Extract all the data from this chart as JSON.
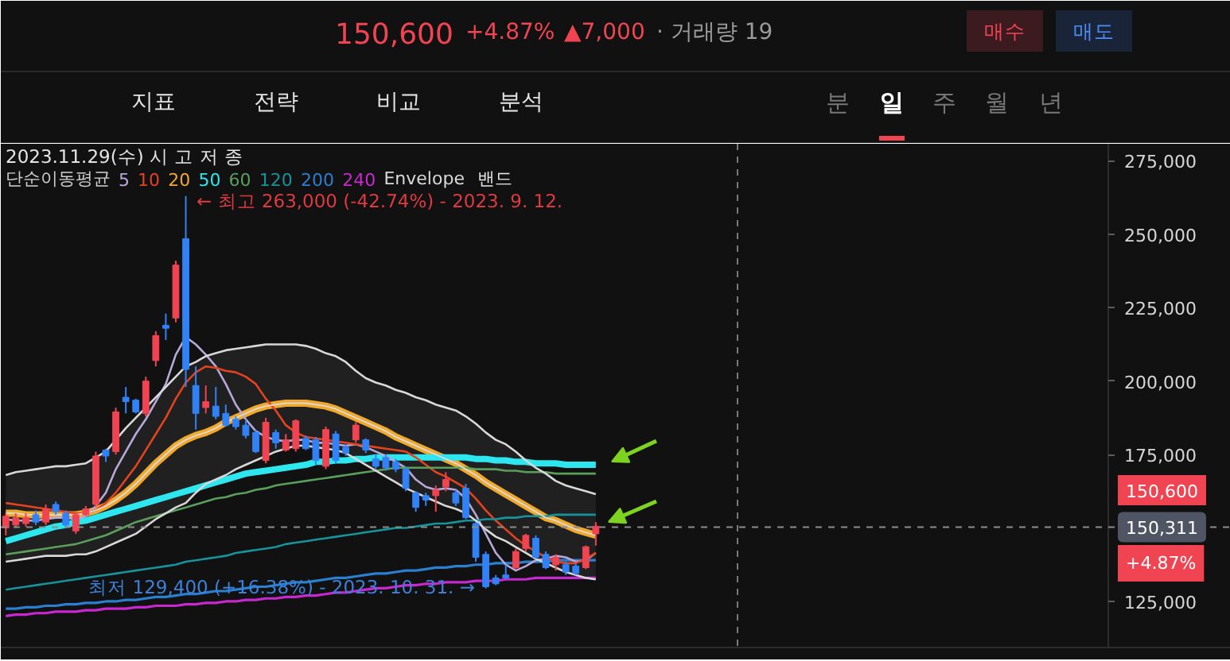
{
  "chart_data": {
    "type": "candlestick",
    "annotations": [
      "150,600",
      "+4.87%",
      "▲7,000",
      "· 거래량 19",
      "매수",
      "매도",
      "지표",
      "전략",
      "비교",
      "분석",
      "분",
      "일",
      "주",
      "월",
      "년",
      "2023.11.29(수) 시 고 저 종",
      "← 최고 263,000 (-42.74%) - 2023. 9. 12.",
      "최저 129,400 (+16.38%) - 2023. 10. 31. →",
      "150,600",
      "+4.87%",
      "밴드"
    ],
    "legend": "top left",
    "legend_title": "단순이동평균",
    "tick_labels": "y",
    "categories": [
      null,
      null,
      null,
      null,
      null,
      null,
      null,
      null,
      null,
      null,
      null,
      null,
      null,
      null,
      null,
      null,
      null,
      null,
      null,
      null,
      null,
      null,
      null,
      null,
      null,
      null,
      null,
      null,
      null,
      null,
      null,
      null,
      null,
      null,
      null,
      null,
      null,
      null,
      null,
      null,
      null,
      null,
      null,
      null,
      null,
      null,
      null,
      null,
      null,
      null,
      null,
      null,
      null,
      null,
      null,
      null,
      null,
      null,
      null,
      null,
      null,
      null,
      null,
      null,
      null,
      null,
      null,
      null,
      null,
      null,
      null,
      null,
      null,
      null,
      null,
      null,
      null,
      null,
      null,
      null,
      null,
      null,
      null,
      null,
      null,
      null,
      null,
      null,
      null,
      null,
      null,
      null,
      null,
      null,
      null,
      null,
      null,
      null,
      null,
      null,
      null,
      null,
      null,
      null,
      null,
      null,
      null,
      null,
      null,
      null,
      null,
      null,
      null,
      null,
      null,
      null,
      null,
      null,
      null,
      null,
      null,
      null,
      null
    ],
    "ohlc": [
      [
        150000,
        155000,
        147500,
        154000
      ],
      [
        151000,
        155000,
        150000,
        153500
      ],
      [
        151500,
        155000,
        150500,
        153500
      ],
      [
        154500,
        156000,
        151000,
        152000
      ],
      [
        152000,
        158000,
        151000,
        156500
      ],
      [
        158000,
        159000,
        154500,
        155500
      ],
      [
        155000,
        156000,
        150000,
        151000
      ],
      [
        149000,
        155000,
        148000,
        154500
      ],
      [
        154500,
        157500,
        154000,
        156500
      ],
      [
        158000,
        176000,
        157000,
        174500
      ],
      [
        176500,
        177000,
        172500,
        174500
      ],
      [
        176000,
        191000,
        175000,
        189500
      ],
      [
        194500,
        198000,
        189000,
        193000
      ],
      [
        193500,
        194000,
        189000,
        189500
      ],
      [
        189000,
        201500,
        188000,
        200000
      ],
      [
        207000,
        217000,
        205000,
        215500
      ],
      [
        219000,
        223000,
        214000,
        218000
      ],
      [
        221500,
        241000,
        220000,
        239500
      ],
      [
        248500,
        263000,
        198000,
        204000
      ],
      [
        198500,
        205000,
        183500,
        189000
      ],
      [
        191000,
        198500,
        189000,
        193000
      ],
      [
        191500,
        198000,
        187000,
        188000
      ],
      [
        189000,
        192000,
        184500,
        185000
      ],
      [
        187000,
        188000,
        183500,
        184500
      ],
      [
        185000,
        187000,
        180500,
        181500
      ],
      [
        182500,
        183500,
        175500,
        176000
      ],
      [
        173000,
        187500,
        172000,
        186000
      ],
      [
        182500,
        183500,
        177000,
        179000
      ],
      [
        176500,
        182000,
        176000,
        180000
      ],
      [
        177000,
        187000,
        176000,
        186500
      ],
      [
        180500,
        181500,
        176500,
        177000
      ],
      [
        180000,
        181000,
        171500,
        173000
      ],
      [
        171000,
        184500,
        170000,
        183500
      ],
      [
        182000,
        183000,
        172000,
        173000
      ],
      [
        177500,
        178500,
        174500,
        175500
      ],
      [
        180000,
        186000,
        179000,
        185000
      ],
      [
        180000,
        180500,
        175500,
        176500
      ],
      [
        173500,
        175000,
        170000,
        171000
      ],
      [
        174000,
        175000,
        169500,
        170500
      ],
      [
        172500,
        173500,
        169000,
        170000
      ],
      [
        170000,
        171000,
        162500,
        163500
      ],
      [
        162000,
        162500,
        155500,
        157000
      ],
      [
        161000,
        162000,
        157500,
        159500
      ],
      [
        161000,
        164500,
        155500,
        163000
      ],
      [
        164000,
        169000,
        162500,
        166500
      ],
      [
        162000,
        163000,
        157500,
        158500
      ],
      [
        163500,
        165000,
        153000,
        153500
      ],
      [
        151500,
        152000,
        138500,
        140000
      ],
      [
        141000,
        142000,
        129400,
        130000
      ],
      [
        133000,
        134000,
        130500,
        131000
      ],
      [
        134000,
        137500,
        132500,
        133000
      ],
      [
        136500,
        143000,
        136000,
        142000
      ],
      [
        143000,
        148000,
        142000,
        147500
      ],
      [
        146500,
        147500,
        139500,
        140000
      ],
      [
        141000,
        142000,
        136000,
        136500
      ],
      [
        137500,
        141000,
        135500,
        140000
      ],
      [
        137500,
        138500,
        134000,
        135000
      ],
      [
        137000,
        138000,
        134000,
        134500
      ],
      [
        136500,
        144000,
        136000,
        143600
      ],
      [
        148000,
        152000,
        144000,
        150600
      ],
      null,
      null,
      null,
      null,
      null,
      null,
      null,
      null,
      null,
      null,
      null,
      null,
      null,
      null,
      null,
      null,
      null,
      null,
      null,
      null,
      null,
      null,
      null,
      null,
      null,
      null,
      null,
      null,
      null,
      null,
      null,
      null,
      null,
      null,
      null,
      null,
      null,
      null,
      null,
      null,
      null,
      null,
      null,
      null,
      null,
      null,
      null,
      null,
      null,
      null,
      null,
      null,
      null,
      null,
      null,
      null,
      null,
      null,
      null,
      null,
      null,
      null,
      null
    ],
    "colors": [
      "#f04452",
      "#f04452",
      "#f04452",
      "#3182f6",
      "#f04452",
      "#3182f6",
      "#3182f6",
      "#f04452",
      "#f04452",
      "#f04452",
      "#3182f6",
      "#f04452",
      "#3182f6",
      "#3182f6",
      "#f04452",
      "#f04452",
      "#3182f6",
      "#f04452",
      "#3182f6",
      "#3182f6",
      "#f04452",
      "#3182f6",
      "#3182f6",
      "#3182f6",
      "#3182f6",
      "#3182f6",
      "#f04452",
      "#3182f6",
      "#f04452",
      "#f04452",
      "#3182f6",
      "#3182f6",
      "#f04452",
      "#3182f6",
      "#3182f6",
      "#f04452",
      "#3182f6",
      "#3182f6",
      "#3182f6",
      "#3182f6",
      "#3182f6",
      "#3182f6",
      "#3182f6",
      "#f04452",
      "#f04452",
      "#3182f6",
      "#3182f6",
      "#3182f6",
      "#3182f6",
      "#3182f6",
      "#3182f6",
      "#f04452",
      "#f04452",
      "#3182f6",
      "#3182f6",
      "#f04452",
      "#3182f6",
      "#3182f6",
      "#f04452",
      "#f04452",
      null,
      null,
      null,
      null,
      null,
      null,
      null,
      null,
      null,
      null,
      null,
      null,
      null,
      null,
      null,
      null,
      null,
      null,
      null,
      null,
      null,
      null,
      null,
      null,
      null,
      null,
      null,
      null,
      null,
      null,
      null,
      null,
      null,
      null,
      null,
      null,
      null,
      null,
      null,
      null,
      null,
      null,
      null,
      null,
      null,
      null,
      null,
      null,
      null,
      null,
      null,
      null,
      null,
      null,
      null,
      null,
      null,
      null,
      null,
      null,
      null,
      null,
      null
    ],
    "series": [
      {
        "name": "5",
        "type": "line",
        "color": "#b8a8da",
        "values": [
          153000,
          152500,
          152500,
          152500,
          153000,
          153500,
          153500,
          153000,
          154000,
          157500,
          162000,
          170000,
          176000,
          182000,
          187000,
          193000,
          199000,
          209000,
          215000,
          212500,
          209000,
          205000,
          199000,
          192000,
          187000,
          183000,
          181000,
          180000,
          179500,
          180000,
          180000,
          179000,
          179000,
          178500,
          178000,
          178500,
          177500,
          176000,
          174500,
          172500,
          170500,
          166500,
          164000,
          163000,
          163500,
          163000,
          160000,
          154500,
          148000,
          141500,
          137500,
          135500,
          137000,
          139000,
          139500,
          140500,
          140000,
          138500,
          139000,
          141500,
          null,
          null,
          null,
          null,
          null,
          null,
          null,
          null,
          null,
          null,
          null,
          null,
          null,
          null,
          null,
          null,
          null,
          null,
          null,
          null,
          null,
          null,
          null,
          null,
          null,
          null,
          null,
          null,
          null,
          null,
          null,
          null,
          null,
          null,
          null,
          null,
          null,
          null,
          null,
          null,
          null,
          null,
          null,
          null,
          null,
          null,
          null,
          null,
          null,
          null,
          null,
          null,
          null,
          null,
          null,
          null,
          null,
          null,
          null,
          null,
          null,
          null,
          null
        ]
      },
      {
        "name": "10",
        "type": "line",
        "color": "#e4431f",
        "values": [
          158500,
          158000,
          157500,
          157000,
          156500,
          156000,
          155500,
          155000,
          155000,
          156000,
          158500,
          162000,
          166500,
          171000,
          176500,
          182000,
          187500,
          194000,
          199500,
          203000,
          205000,
          204500,
          203500,
          203000,
          201500,
          199000,
          194000,
          190000,
          185000,
          182500,
          181000,
          180500,
          180000,
          179500,
          179000,
          178500,
          178000,
          177500,
          177000,
          176500,
          176000,
          174000,
          171500,
          169000,
          167500,
          165500,
          163500,
          160000,
          156000,
          152500,
          149500,
          146500,
          144000,
          142000,
          140000,
          138500,
          138000,
          138000,
          139500,
          141500,
          null,
          null,
          null,
          null,
          null,
          null,
          null,
          null,
          null,
          null,
          null,
          null,
          null,
          null,
          null,
          null,
          null,
          null,
          null,
          null,
          null,
          null,
          null,
          null,
          null,
          null,
          null,
          null,
          null,
          null,
          null,
          null,
          null,
          null,
          null,
          null,
          null,
          null,
          null,
          null,
          null,
          null,
          null,
          null,
          null,
          null,
          null,
          null,
          null,
          null,
          null,
          null,
          null,
          null,
          null,
          null,
          null,
          null,
          null,
          null,
          null,
          null,
          null
        ]
      },
      {
        "name": "20",
        "type": "line",
        "color": "#f2a92a",
        "values": [
          155000,
          155000,
          154500,
          154500,
          154500,
          154500,
          154500,
          154500,
          155000,
          156000,
          157500,
          159500,
          162000,
          165000,
          168500,
          172000,
          175000,
          178000,
          180000,
          181500,
          182500,
          184000,
          186000,
          187500,
          189000,
          190500,
          191500,
          192000,
          192500,
          192500,
          192500,
          192000,
          191500,
          190500,
          189000,
          187500,
          186000,
          184500,
          183000,
          181000,
          179500,
          178000,
          176500,
          175000,
          173500,
          172000,
          170000,
          168000,
          165500,
          163500,
          161500,
          159500,
          157500,
          155500,
          153500,
          152500,
          151000,
          149500,
          148500,
          147500,
          null,
          null,
          null,
          null,
          null,
          null,
          null,
          null,
          null,
          null,
          null,
          null,
          null,
          null,
          null,
          null,
          null,
          null,
          null,
          null,
          null,
          null,
          null,
          null,
          null,
          null,
          null,
          null,
          null,
          null,
          null,
          null,
          null,
          null,
          null,
          null,
          null,
          null,
          null,
          null,
          null,
          null,
          null,
          null,
          null,
          null,
          null,
          null,
          null,
          null,
          null,
          null,
          null,
          null,
          null,
          null,
          null,
          null,
          null,
          null,
          null,
          null,
          null
        ]
      },
      {
        "name": "50",
        "type": "line",
        "color": "#2ee6ee",
        "values": [
          145500,
          146500,
          147500,
          148500,
          149500,
          150500,
          151000,
          152000,
          152500,
          153500,
          154500,
          155500,
          156500,
          157500,
          158500,
          159500,
          160500,
          161500,
          162500,
          163500,
          164500,
          165500,
          166500,
          167500,
          168500,
          169000,
          169500,
          170000,
          170500,
          171000,
          171500,
          172500,
          172500,
          173000,
          173000,
          173500,
          173500,
          174000,
          174000,
          174000,
          174000,
          174000,
          174000,
          174000,
          174000,
          174000,
          174000,
          173500,
          173500,
          173000,
          173000,
          172500,
          172500,
          172000,
          172000,
          172000,
          171500,
          171500,
          171500,
          171500,
          null,
          null,
          null,
          null,
          null,
          null,
          null,
          null,
          null,
          null,
          null,
          null,
          null,
          null,
          null,
          null,
          null,
          null,
          null,
          null,
          null,
          null,
          null,
          null,
          null,
          null,
          null,
          null,
          null,
          null,
          null,
          null,
          null,
          null,
          null,
          null,
          null,
          null,
          null,
          null,
          null,
          null,
          null,
          null,
          null,
          null,
          null,
          null,
          null,
          null,
          null,
          null,
          null,
          null,
          null,
          null,
          null,
          null,
          null,
          null,
          null,
          null,
          null
        ]
      },
      {
        "name": "60",
        "type": "line",
        "color": "#5a9f5c",
        "values": [
          141000,
          141500,
          142000,
          142500,
          143000,
          143500,
          144000,
          144500,
          145500,
          146500,
          147500,
          149000,
          150500,
          152000,
          153000,
          154000,
          155000,
          156000,
          157000,
          158000,
          159000,
          160000,
          160500,
          161500,
          162000,
          163000,
          163500,
          164500,
          165000,
          165500,
          166000,
          166500,
          167000,
          167500,
          168000,
          168500,
          169000,
          169500,
          170000,
          170500,
          170500,
          170500,
          170500,
          170500,
          170500,
          170500,
          170500,
          170000,
          170000,
          170000,
          169500,
          169500,
          169000,
          169000,
          169000,
          168500,
          168500,
          168500,
          168500,
          168500,
          null,
          null,
          null,
          null,
          null,
          null,
          null,
          null,
          null,
          null,
          null,
          null,
          null,
          null,
          null,
          null,
          null,
          null,
          null,
          null,
          null,
          null,
          null,
          null,
          null,
          null,
          null,
          null,
          null,
          null,
          null,
          null,
          null,
          null,
          null,
          null,
          null,
          null,
          null,
          null,
          null,
          null,
          null,
          null,
          null,
          null,
          null,
          null,
          null,
          null,
          null,
          null,
          null,
          null,
          null,
          null,
          null,
          null,
          null,
          null,
          null,
          null,
          null
        ]
      },
      {
        "name": "120",
        "type": "line",
        "color": "#17939b",
        "values": [
          129000,
          129500,
          130000,
          130500,
          131000,
          131500,
          132000,
          132500,
          133000,
          133500,
          134000,
          134500,
          135000,
          135500,
          136000,
          136500,
          137000,
          137500,
          138500,
          139000,
          139500,
          140000,
          140500,
          141500,
          142000,
          142500,
          143000,
          143500,
          144500,
          145000,
          145500,
          146000,
          146500,
          147000,
          147500,
          148000,
          148500,
          149000,
          149500,
          150000,
          150000,
          150500,
          151000,
          151500,
          151500,
          152000,
          152500,
          152500,
          153000,
          153000,
          153500,
          153500,
          154000,
          154000,
          154000,
          154500,
          154500,
          154500,
          154500,
          154500,
          null,
          null,
          null,
          null,
          null,
          null,
          null,
          null,
          null,
          null,
          null,
          null,
          null,
          null,
          null,
          null,
          null,
          null,
          null,
          null,
          null,
          null,
          null,
          null,
          null,
          null,
          null,
          null,
          null,
          null,
          null,
          null,
          null,
          null,
          null,
          null,
          null,
          null,
          null,
          null,
          null,
          null,
          null,
          null,
          null,
          null,
          null,
          null,
          null,
          null,
          null,
          null,
          null,
          null,
          null,
          null,
          null,
          null,
          null,
          null,
          null,
          null,
          null
        ]
      },
      {
        "name": "200",
        "type": "line",
        "color": "#2b7fd1",
        "values": [
          122500,
          122500,
          123000,
          123000,
          123500,
          123500,
          124000,
          124000,
          124500,
          124500,
          125000,
          125000,
          125500,
          125500,
          126000,
          126500,
          126500,
          127000,
          127500,
          127500,
          128000,
          128500,
          128500,
          129000,
          129500,
          130000,
          130000,
          130500,
          131000,
          131500,
          131500,
          132000,
          132500,
          133000,
          133000,
          133500,
          134000,
          134500,
          134500,
          135000,
          135500,
          135500,
          136000,
          136500,
          136500,
          137000,
          137000,
          137500,
          137500,
          138000,
          138000,
          138000,
          138500,
          138500,
          138500,
          139000,
          139000,
          139000,
          139000,
          139000,
          null,
          null,
          null,
          null,
          null,
          null,
          null,
          null,
          null,
          null,
          null,
          null,
          null,
          null,
          null,
          null,
          null,
          null,
          null,
          null,
          null,
          null,
          null,
          null,
          null,
          null,
          null,
          null,
          null,
          null,
          null,
          null,
          null,
          null,
          null,
          null,
          null,
          null,
          null,
          null,
          null,
          null,
          null,
          null,
          null,
          null,
          null,
          null,
          null,
          null,
          null,
          null,
          null,
          null,
          null,
          null,
          null,
          null,
          null,
          null,
          null,
          null,
          null
        ]
      },
      {
        "name": "240",
        "type": "line",
        "color": "#c828cf",
        "values": [
          120000,
          120500,
          120500,
          121000,
          121000,
          121500,
          121500,
          121500,
          122000,
          122000,
          122500,
          122500,
          122500,
          123000,
          123000,
          123500,
          123500,
          123500,
          124000,
          124000,
          124500,
          124500,
          125000,
          125000,
          125500,
          125500,
          126000,
          126000,
          126500,
          126500,
          127000,
          127000,
          127500,
          128000,
          128000,
          128500,
          129000,
          129500,
          129500,
          130000,
          130500,
          130500,
          131000,
          131000,
          131500,
          131500,
          131500,
          132000,
          132000,
          132000,
          132500,
          132500,
          132500,
          133000,
          133000,
          133000,
          133000,
          133000,
          133000,
          133000,
          null,
          null,
          null,
          null,
          null,
          null,
          null,
          null,
          null,
          null,
          null,
          null,
          null,
          null,
          null,
          null,
          null,
          null,
          null,
          null,
          null,
          null,
          null,
          null,
          null,
          null,
          null,
          null,
          null,
          null,
          null,
          null,
          null,
          null,
          null,
          null,
          null,
          null,
          null,
          null,
          null,
          null,
          null,
          null,
          null,
          null,
          null,
          null,
          null,
          null,
          null,
          null,
          null,
          null,
          null,
          null,
          null,
          null,
          null,
          null,
          null,
          null,
          null
        ]
      },
      {
        "name": "Envelope",
        "type": "line",
        "color": "#d8d8d8",
        "values": [
          155000,
          155000,
          154500,
          154500,
          154500,
          154500,
          154500,
          154500,
          155000,
          156000,
          157500,
          159500,
          162000,
          165000,
          168500,
          172000,
          175000,
          178000,
          180000,
          181500,
          182500,
          184000,
          186000,
          187500,
          189000,
          190500,
          191500,
          192000,
          192500,
          192500,
          192500,
          192000,
          191500,
          190500,
          189000,
          187500,
          186000,
          184500,
          183000,
          181000,
          179500,
          178000,
          176500,
          175000,
          173500,
          172000,
          170000,
          168000,
          165500,
          163500,
          161500,
          159500,
          157500,
          155500,
          153500,
          152500,
          151000,
          149500,
          148500,
          147500,
          null,
          null,
          null,
          null,
          null,
          null,
          null,
          null,
          null,
          null,
          null,
          null,
          null,
          null,
          null,
          null,
          null,
          null,
          null,
          null,
          null,
          null,
          null,
          null,
          null,
          null,
          null,
          null,
          null,
          null,
          null,
          null,
          null,
          null,
          null,
          null,
          null,
          null,
          null,
          null,
          null,
          null,
          null,
          null,
          null,
          null,
          null,
          null,
          null,
          null,
          null,
          null,
          null,
          null,
          null,
          null,
          null,
          null,
          null,
          null,
          null,
          null,
          null
        ],
        "upper": [
          168000,
          169000,
          169500,
          170000,
          170500,
          171000,
          171000,
          171500,
          172000,
          174000,
          176000,
          180000,
          184000,
          187500,
          191000,
          194500,
          198000,
          201500,
          205000,
          206500,
          208500,
          209500,
          210500,
          211000,
          211500,
          212000,
          212500,
          212500,
          212500,
          212500,
          212000,
          211000,
          209500,
          208500,
          206500,
          203500,
          201000,
          199500,
          198500,
          197000,
          196000,
          194500,
          193500,
          192000,
          191000,
          190000,
          188000,
          185500,
          182500,
          180000,
          178500,
          176000,
          173000,
          170500,
          168500,
          166000,
          164500,
          163500,
          162500,
          161500,
          null,
          null,
          null,
          null,
          null,
          null,
          null,
          null,
          null,
          null,
          null,
          null,
          null,
          null,
          null,
          null,
          null,
          null,
          null,
          null,
          null,
          null,
          null,
          null,
          null,
          null,
          null,
          null,
          null,
          null,
          null,
          null,
          null,
          null,
          null,
          null,
          null,
          null,
          null,
          null,
          null,
          null,
          null,
          null,
          null,
          null,
          null,
          null,
          null,
          null,
          null,
          null,
          null,
          null,
          null,
          null,
          null,
          null,
          null,
          null,
          null,
          null,
          null
        ],
        "lower": [
          138500,
          139000,
          139500,
          140000,
          140500,
          140500,
          140500,
          141000,
          141000,
          142000,
          143500,
          145000,
          146500,
          148000,
          150500,
          153000,
          155000,
          157000,
          158500,
          162000,
          165000,
          166500,
          168000,
          170000,
          171500,
          173000,
          174500,
          176000,
          177000,
          178000,
          178000,
          177500,
          177000,
          176500,
          175500,
          173500,
          171500,
          169500,
          167500,
          165500,
          163500,
          162000,
          160500,
          159000,
          157500,
          156500,
          155000,
          152500,
          149500,
          147000,
          145500,
          143500,
          141500,
          139500,
          138000,
          136500,
          135000,
          134000,
          133000,
          132500,
          null,
          null,
          null,
          null,
          null,
          null,
          null,
          null,
          null,
          null,
          null,
          null,
          null,
          null,
          null,
          null,
          null,
          null,
          null,
          null,
          null,
          null,
          null,
          null,
          null,
          null,
          null,
          null,
          null,
          null,
          null,
          null,
          null,
          null,
          null,
          null,
          null,
          null,
          null,
          null,
          null,
          null,
          null,
          null,
          null,
          null,
          null,
          null,
          null,
          null,
          null,
          null,
          null,
          null,
          null,
          null,
          null,
          null,
          null,
          null,
          null,
          null,
          null
        ]
      },
      {
        "type": "line",
        "color": "#d8d8d8",
        "values": [
          168000,
          169000,
          169500,
          170000,
          170500,
          171000,
          171000,
          171500,
          172000,
          174000,
          176000,
          180000,
          184000,
          187500,
          191000,
          194500,
          198000,
          201500,
          205000,
          206500,
          208500,
          209500,
          210500,
          211000,
          211500,
          212000,
          212500,
          212500,
          212500,
          212500,
          212000,
          211000,
          209500,
          208500,
          206500,
          203500,
          201000,
          199500,
          198500,
          197000,
          196000,
          194500,
          193500,
          192000,
          191000,
          190000,
          188000,
          185500,
          182500,
          180000,
          178500,
          176000,
          173000,
          170500,
          168500,
          166000,
          164500,
          163500,
          162500,
          161500,
          null,
          null,
          null,
          null,
          null,
          null,
          null,
          null,
          null,
          null,
          null,
          null,
          null,
          null,
          null,
          null,
          null,
          null,
          null,
          null,
          null,
          null,
          null,
          null,
          null,
          null,
          null,
          null,
          null,
          null,
          null,
          null,
          null,
          null,
          null,
          null,
          null,
          null,
          null,
          null,
          null,
          null,
          null,
          null,
          null,
          null,
          null,
          null,
          null,
          null,
          null,
          null,
          null,
          null,
          null,
          null,
          null,
          null,
          null,
          null,
          null,
          null,
          null
        ]
      },
      {
        "type": "line",
        "color": "#d8d8d8",
        "values": [
          138500,
          139000,
          139500,
          140000,
          140500,
          140500,
          140500,
          141000,
          141000,
          142000,
          143500,
          145000,
          146500,
          148000,
          150500,
          153000,
          155000,
          157000,
          158500,
          162000,
          165000,
          166500,
          168000,
          170000,
          171500,
          173000,
          174500,
          176000,
          177000,
          178000,
          178000,
          177500,
          177000,
          176500,
          175500,
          173500,
          171500,
          169500,
          167500,
          165500,
          163500,
          162000,
          160500,
          159000,
          157500,
          156500,
          155000,
          152500,
          149500,
          147000,
          145500,
          143500,
          141500,
          139500,
          138000,
          136500,
          135000,
          134000,
          133000,
          132500,
          null,
          null,
          null,
          null,
          null,
          null,
          null,
          null,
          null,
          null,
          null,
          null,
          null,
          null,
          null,
          null,
          null,
          null,
          null,
          null,
          null,
          null,
          null,
          null,
          null,
          null,
          null,
          null,
          null,
          null,
          null,
          null,
          null,
          null,
          null,
          null,
          null,
          null,
          null,
          null,
          null,
          null,
          null,
          null,
          null,
          null,
          null,
          null,
          null,
          null,
          null,
          null,
          null,
          null,
          null,
          null,
          null,
          null,
          null,
          null,
          null,
          null,
          null
        ]
      }
    ],
    "ylim": [
      109300,
      280800
    ],
    "yticks": [
      {
        "value": 125000,
        "label": "125,000"
      },
      {
        "value": 175000,
        "label": "175,000"
      },
      {
        "value": 200000,
        "label": "200,000"
      },
      {
        "value": 225000,
        "label": "225,000"
      },
      {
        "value": 250000,
        "label": "250,000"
      },
      {
        "value": 275000,
        "label": "275,000"
      }
    ],
    "ref_lines": [
      {
        "axis": "y",
        "value": 150311,
        "label": "150,311",
        "line_style": "dashed",
        "color": "#8c8c8c"
      }
    ]
  }
}
